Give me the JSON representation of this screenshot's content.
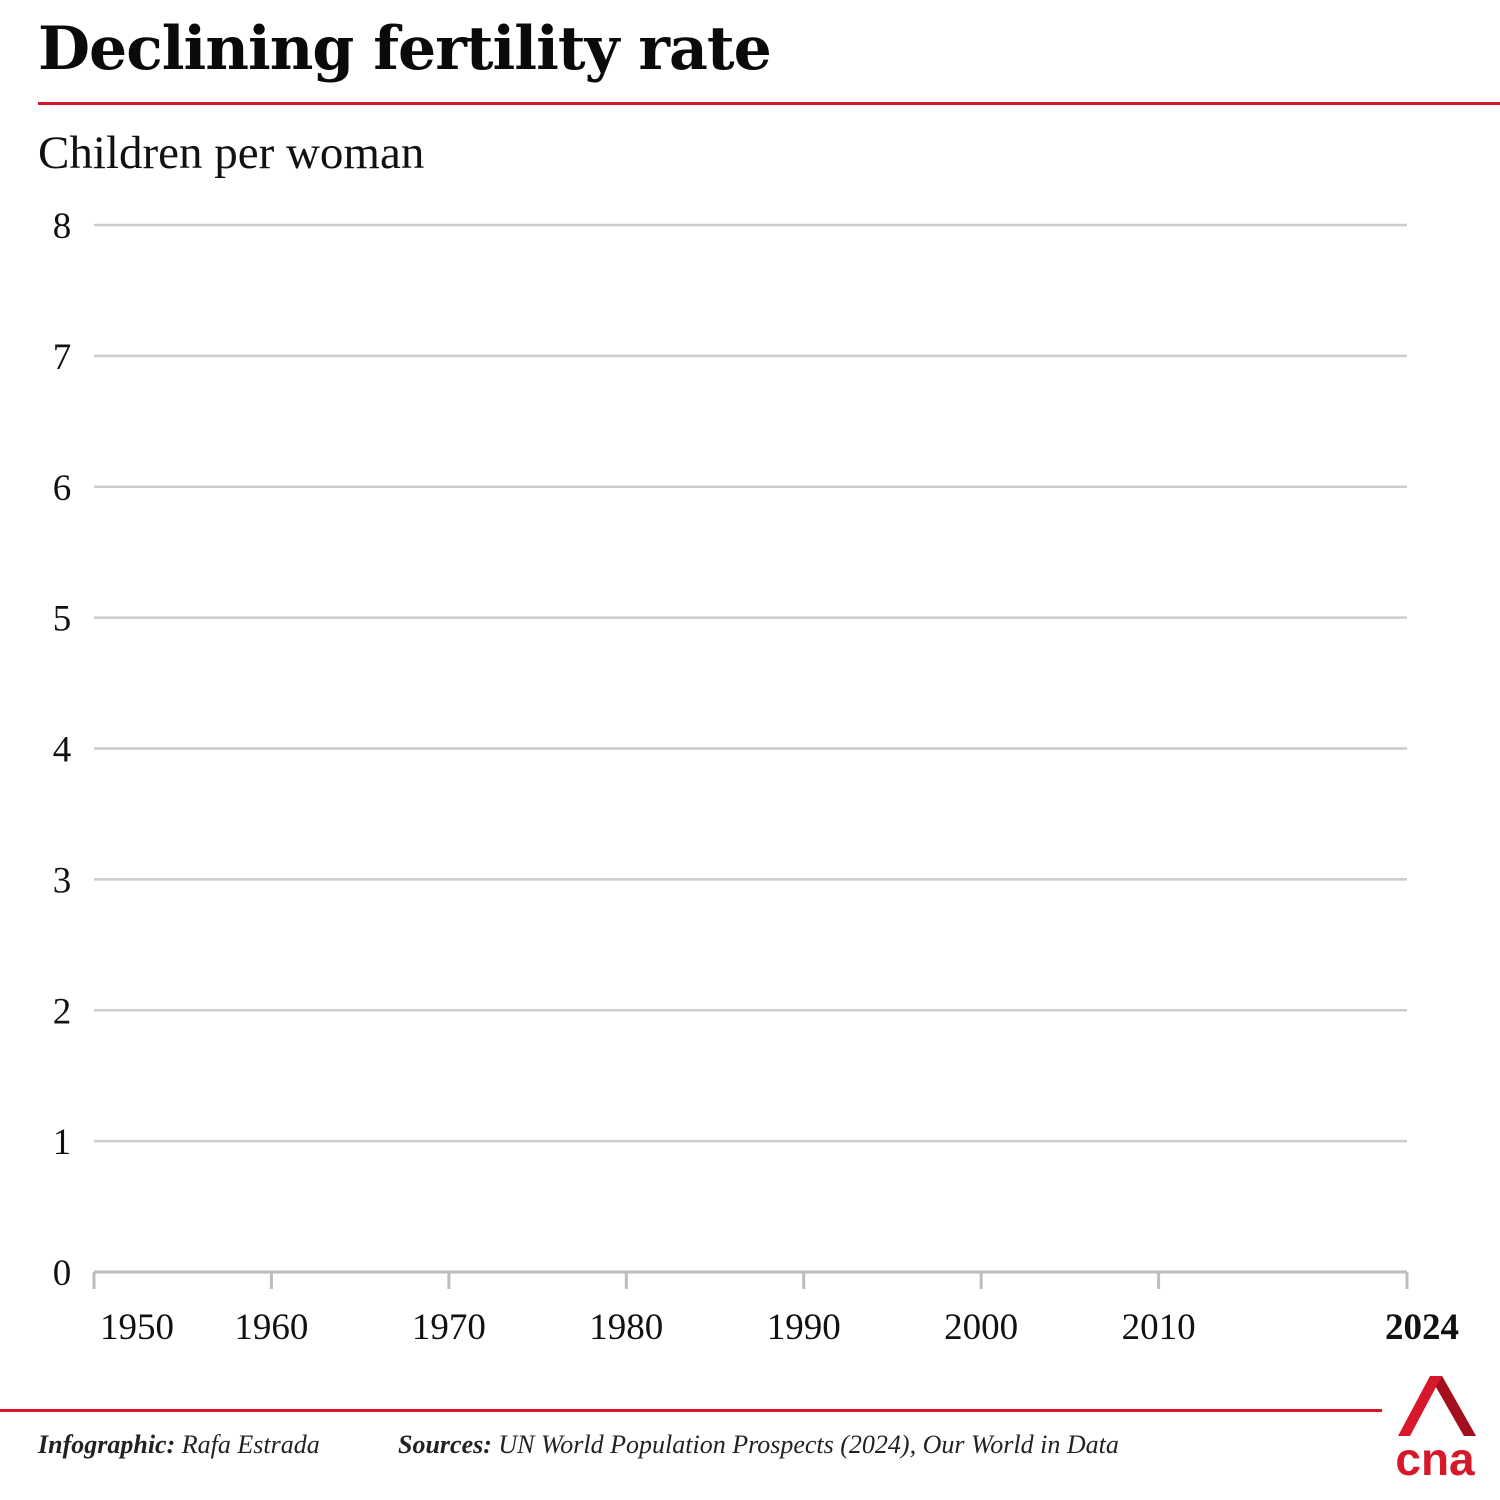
{
  "header": {
    "title": "Declining fertility rate",
    "subtitle": "Children per woman"
  },
  "chart_data": {
    "type": "line",
    "title": "Declining fertility rate",
    "ylabel": "Children per woman",
    "xlabel": "",
    "xlim": [
      1950,
      2024
    ],
    "ylim": [
      0,
      8
    ],
    "y_ticks": [
      "0",
      "1",
      "2",
      "3",
      "4",
      "5",
      "6",
      "7",
      "8"
    ],
    "x_ticks": [
      {
        "value": 1950,
        "label": "1950",
        "bold": false
      },
      {
        "value": 1960,
        "label": "1960",
        "bold": false
      },
      {
        "value": 1970,
        "label": "1970",
        "bold": false
      },
      {
        "value": 1980,
        "label": "1980",
        "bold": false
      },
      {
        "value": 1990,
        "label": "1990",
        "bold": false
      },
      {
        "value": 2000,
        "label": "2000",
        "bold": false
      },
      {
        "value": 2010,
        "label": "2010",
        "bold": false
      },
      {
        "value": 2024,
        "label": "2024",
        "bold": true
      }
    ],
    "series": [],
    "grid": true,
    "colors": {
      "grid": "#cccccc",
      "axis": "#bdbdbd",
      "accent": "#d7182a"
    }
  },
  "footer": {
    "credit_label": "Infographic:",
    "credit_value": " Rafa Estrada",
    "sources_label": "Sources:",
    "sources_value": " UN World Population Prospects (2024), Our World in Data"
  },
  "logo": {
    "text": "cna",
    "icon": "cna-logo-icon"
  }
}
